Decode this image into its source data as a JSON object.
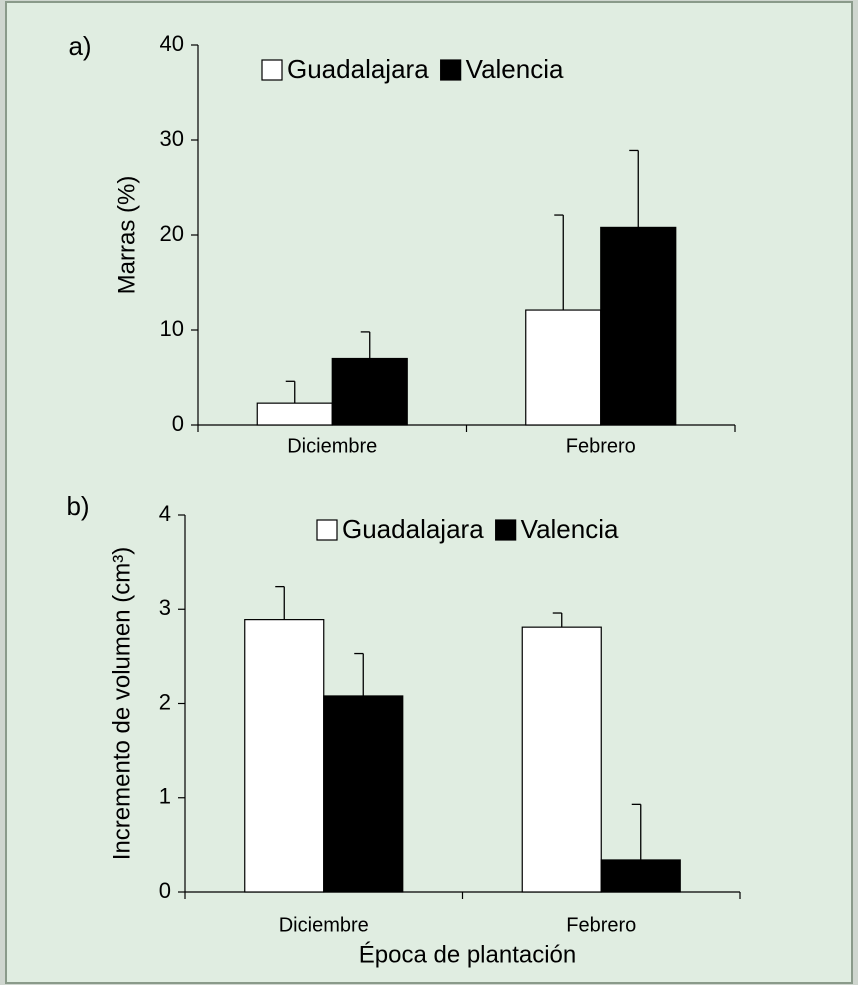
{
  "chart_data": [
    {
      "type": "bar",
      "panel_label": "a)",
      "y_label": "Marras (%)",
      "categories": [
        "Diciembre",
        "Febrero"
      ],
      "series": [
        {
          "name": "Guadalajara",
          "color": "#ffffff",
          "values": [
            2.3,
            12.1
          ],
          "errors": [
            2.3,
            10.0
          ]
        },
        {
          "name": "Valencia",
          "color": "#000000",
          "values": [
            7.0,
            20.8
          ],
          "errors": [
            2.8,
            8.1
          ]
        }
      ],
      "ylim": [
        0,
        40
      ],
      "yticks": [
        0,
        10,
        20,
        30,
        40
      ]
    },
    {
      "type": "bar",
      "panel_label": "b)",
      "y_label": "Incremento de volumen (cm³)",
      "x_label": "Época de plantación",
      "categories": [
        "Diciembre",
        "Febrero"
      ],
      "series": [
        {
          "name": "Guadalajara",
          "color": "#ffffff",
          "values": [
            2.89,
            2.81
          ],
          "errors": [
            0.35,
            0.15
          ]
        },
        {
          "name": "Valencia",
          "color": "#000000",
          "values": [
            2.08,
            0.34
          ],
          "errors": [
            0.45,
            0.59
          ]
        }
      ],
      "ylim": [
        0,
        4
      ],
      "yticks": [
        0,
        1,
        2,
        3,
        4
      ]
    }
  ]
}
